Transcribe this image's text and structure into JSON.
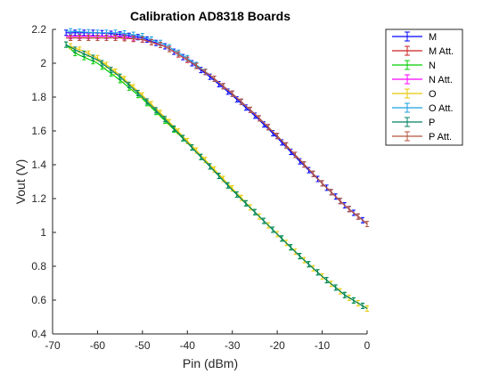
{
  "chart_data": {
    "type": "line",
    "title": "Calibration AD8318 Boards",
    "xlabel": "Pin (dBm)",
    "ylabel": "Vout (V)",
    "xlim": [
      -70,
      0
    ],
    "ylim": [
      0.4,
      2.2
    ],
    "xticks": [
      -70,
      -60,
      -50,
      -40,
      -30,
      -20,
      -10,
      0
    ],
    "yticks": [
      0.4,
      0.6,
      0.8,
      1,
      1.2,
      1.4,
      1.6,
      1.8,
      2,
      2.2
    ],
    "grid": false,
    "legend_location": "outside-top-right",
    "error_bars": true,
    "series": [
      {
        "name": "M",
        "color": "#0000ff",
        "x": [
          -67,
          -60,
          -55,
          -50,
          -45,
          -40,
          -35,
          -30,
          -25,
          -20,
          -15,
          -10,
          -5,
          0
        ],
        "y": [
          2.18,
          2.18,
          2.17,
          2.15,
          2.1,
          2.02,
          1.92,
          1.81,
          1.69,
          1.56,
          1.42,
          1.29,
          1.16,
          1.05
        ]
      },
      {
        "name": "M Att.",
        "color": "#cc2222",
        "x": [
          -67,
          -60,
          -55,
          -50,
          -45,
          -40,
          -35,
          -30,
          -25,
          -20,
          -15,
          -10,
          -5,
          0
        ],
        "y": [
          2.15,
          2.15,
          2.15,
          2.14,
          2.1,
          2.02,
          1.93,
          1.82,
          1.7,
          1.57,
          1.43,
          1.29,
          1.16,
          1.05
        ]
      },
      {
        "name": "N",
        "color": "#00cc00",
        "x": [
          -67,
          -65,
          -60,
          -55,
          -50,
          -45,
          -40,
          -35,
          -30,
          -25,
          -20,
          -15,
          -10,
          -5,
          0
        ],
        "y": [
          2.11,
          2.06,
          2.0,
          1.9,
          1.79,
          1.66,
          1.53,
          1.39,
          1.25,
          1.12,
          0.99,
          0.86,
          0.74,
          0.63,
          0.55
        ]
      },
      {
        "name": "N Att.",
        "color": "#ff00ff",
        "x": [
          -67,
          -60,
          -55,
          -50,
          -45,
          -40,
          -35,
          -30,
          -25,
          -20,
          -15,
          -10,
          -5,
          0
        ],
        "y": [
          2.16,
          2.16,
          2.16,
          2.14,
          2.1,
          2.02,
          1.93,
          1.82,
          1.7,
          1.57,
          1.43,
          1.29,
          1.16,
          1.05
        ]
      },
      {
        "name": "O",
        "color": "#e6c800",
        "x": [
          -66,
          -63,
          -60,
          -55,
          -50,
          -45,
          -40,
          -35,
          -30,
          -25,
          -20,
          -15,
          -10,
          -5,
          0
        ],
        "y": [
          2.1,
          2.07,
          2.03,
          1.93,
          1.81,
          1.68,
          1.54,
          1.4,
          1.26,
          1.12,
          0.99,
          0.86,
          0.74,
          0.63,
          0.55
        ]
      },
      {
        "name": "O Att.",
        "color": "#1ba1e2",
        "x": [
          -67,
          -60,
          -55,
          -50,
          -45,
          -40,
          -35,
          -30,
          -25,
          -20,
          -15,
          -10,
          -5,
          0
        ],
        "y": [
          2.19,
          2.18,
          2.18,
          2.16,
          2.11,
          2.03,
          1.93,
          1.82,
          1.7,
          1.57,
          1.43,
          1.29,
          1.16,
          1.05
        ]
      },
      {
        "name": "P",
        "color": "#008060",
        "x": [
          -67,
          -65,
          -60,
          -55,
          -50,
          -45,
          -40,
          -35,
          -30,
          -25,
          -20,
          -15,
          -10,
          -5,
          0
        ],
        "y": [
          2.11,
          2.08,
          2.02,
          1.92,
          1.8,
          1.67,
          1.53,
          1.39,
          1.25,
          1.12,
          0.99,
          0.86,
          0.74,
          0.63,
          0.55
        ]
      },
      {
        "name": "P Att.",
        "color": "#b5533c",
        "x": [
          -67,
          -60,
          -55,
          -50,
          -45,
          -40,
          -35,
          -30,
          -25,
          -20,
          -15,
          -10,
          -5,
          0
        ],
        "y": [
          2.15,
          2.15,
          2.15,
          2.14,
          2.1,
          2.02,
          1.93,
          1.82,
          1.7,
          1.57,
          1.43,
          1.29,
          1.16,
          1.05
        ]
      }
    ]
  }
}
